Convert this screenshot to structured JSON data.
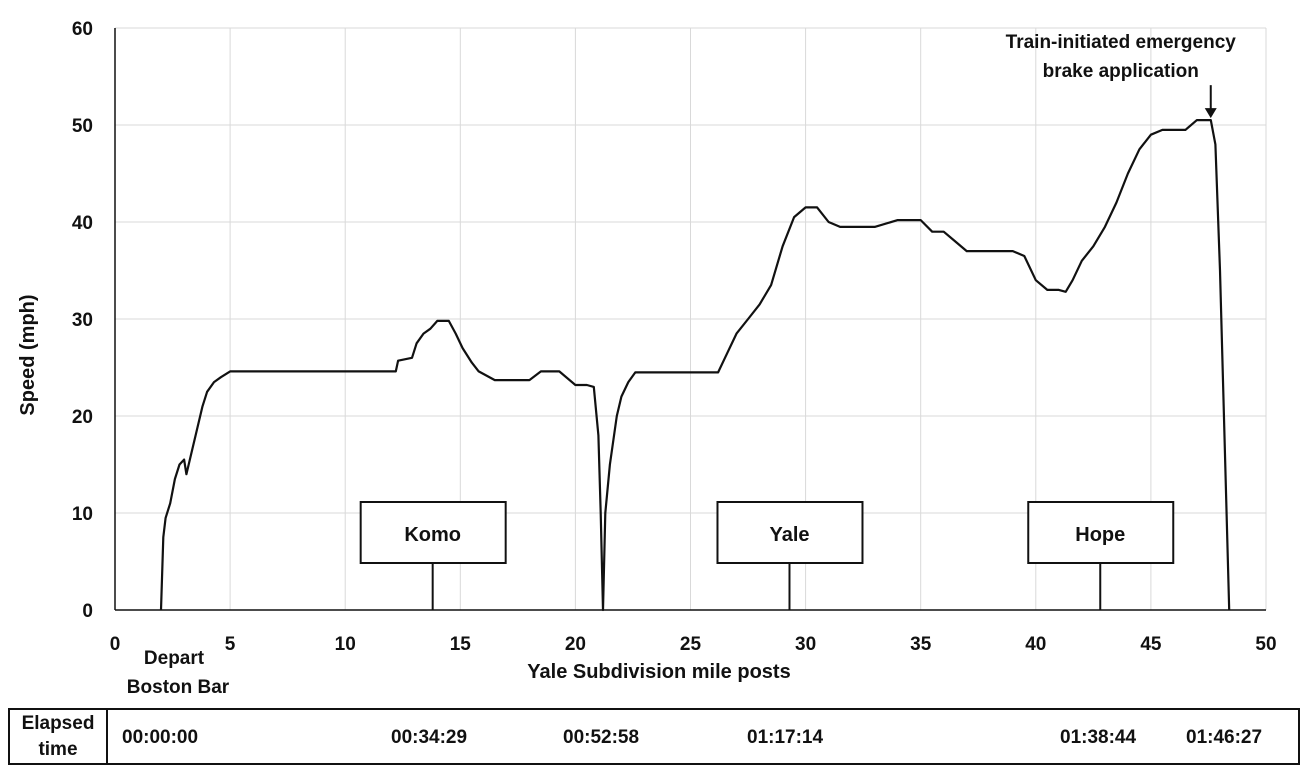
{
  "chart_data": {
    "type": "line",
    "xlabel": "Yale Subdivision mile posts",
    "ylabel": "Speed (mph)",
    "xlim": [
      0,
      50
    ],
    "ylim": [
      0,
      60
    ],
    "x_ticks": [
      0,
      5,
      10,
      15,
      20,
      25,
      30,
      35,
      40,
      45,
      50
    ],
    "y_ticks": [
      0,
      10,
      20,
      30,
      40,
      50,
      60
    ],
    "grid": true,
    "series": [
      {
        "x": [
          2.0,
          2.1,
          2.2,
          2.4,
          2.6,
          2.8,
          3.0,
          3.1,
          3.3,
          3.5,
          3.8,
          4.0,
          4.3,
          4.6,
          5.0,
          8.0,
          10.0,
          12.2,
          12.3,
          12.9,
          13.1,
          13.4,
          13.7,
          14.0,
          14.5,
          14.8,
          15.1,
          15.5,
          15.8,
          16.5,
          17.0,
          18.0,
          18.5,
          19.0,
          19.3,
          20.0,
          20.5,
          20.8,
          21.0,
          21.1,
          21.2,
          21.3,
          21.5,
          21.8,
          22.0,
          22.3,
          22.6,
          23.0,
          24.0,
          25.0,
          26.2,
          26.5,
          27.0,
          27.5,
          28.0,
          28.5,
          29.0,
          29.5,
          30.0,
          30.5,
          31.0,
          31.5,
          32.0,
          33.0,
          34.0,
          35.0,
          35.5,
          36.0,
          36.5,
          37.0,
          37.5,
          38.0,
          39.0,
          39.5,
          40.0,
          40.5,
          41.0,
          41.3,
          41.6,
          42.0,
          42.5,
          43.0,
          43.5,
          44.0,
          44.5,
          45.0,
          45.5,
          46.0,
          46.5,
          47.0,
          47.2,
          47.6,
          47.8,
          48.0,
          48.4
        ],
        "y": [
          0,
          7.5,
          9.5,
          11.0,
          13.5,
          15.0,
          15.5,
          14.0,
          16.0,
          18.0,
          21.0,
          22.5,
          23.5,
          24.0,
          24.6,
          24.6,
          24.6,
          24.6,
          25.7,
          26.0,
          27.5,
          28.5,
          29.0,
          29.8,
          29.8,
          28.5,
          27.0,
          25.5,
          24.6,
          23.7,
          23.7,
          23.7,
          24.6,
          24.6,
          24.6,
          23.2,
          23.2,
          23.0,
          18.0,
          10.0,
          0,
          10.0,
          15.0,
          20.0,
          22.0,
          23.5,
          24.5,
          24.5,
          24.5,
          24.5,
          24.5,
          26.0,
          28.5,
          30.0,
          31.5,
          33.5,
          37.5,
          40.5,
          41.5,
          41.5,
          40.0,
          39.5,
          39.5,
          39.5,
          40.2,
          40.2,
          39.0,
          39.0,
          38.0,
          37.0,
          37.0,
          37.0,
          37.0,
          36.5,
          34.0,
          33.0,
          33.0,
          32.8,
          34.0,
          36.0,
          37.5,
          39.5,
          42.0,
          45.0,
          47.5,
          49.0,
          49.5,
          49.5,
          49.5,
          50.5,
          50.5,
          50.5,
          48.0,
          35.0,
          0
        ]
      }
    ],
    "annotations": [
      {
        "text_lines": [
          "Train-initiated emergency",
          "brake application"
        ],
        "x": 47.6,
        "y": 50.5
      }
    ],
    "locations": [
      {
        "name": "Komo",
        "x": 13.8
      },
      {
        "name": "Yale",
        "x": 29.3
      },
      {
        "name": "Hope",
        "x": 42.8
      }
    ],
    "start_label_lines": [
      "Depart",
      "Boston Bar"
    ]
  },
  "elapsed": {
    "label_lines": [
      "Elapsed",
      "time"
    ],
    "values": [
      "00:00:00",
      "00:34:29",
      "00:52:58",
      "01:17:14",
      "01:38:44",
      "01:46:27"
    ]
  }
}
